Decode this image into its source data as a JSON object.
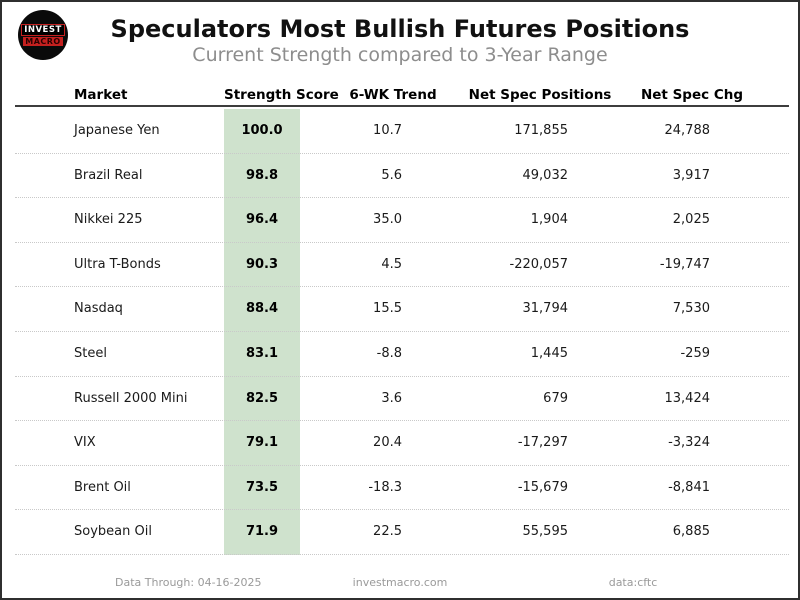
{
  "header": {
    "title": "Speculators Most Bullish Futures Positions",
    "subtitle": "Current Strength compared to 3-Year Range",
    "logo": {
      "line1": "INVEST",
      "line2": "MACRO"
    }
  },
  "table": {
    "columns": {
      "market": "Market",
      "score": "Strength Score",
      "trend": "6-WK Trend",
      "positions": "Net Spec Positions",
      "chg": "Net Spec Chg"
    },
    "rows": [
      {
        "market": "Japanese Yen",
        "score": "100.0",
        "trend": "10.7",
        "positions": "171,855",
        "chg": "24,788"
      },
      {
        "market": "Brazil Real",
        "score": "98.8",
        "trend": "5.6",
        "positions": "49,032",
        "chg": "3,917"
      },
      {
        "market": "Nikkei 225",
        "score": "96.4",
        "trend": "35.0",
        "positions": "1,904",
        "chg": "2,025"
      },
      {
        "market": "Ultra T-Bonds",
        "score": "90.3",
        "trend": "4.5",
        "positions": "-220,057",
        "chg": "-19,747"
      },
      {
        "market": "Nasdaq",
        "score": "88.4",
        "trend": "15.5",
        "positions": "31,794",
        "chg": "7,530"
      },
      {
        "market": "Steel",
        "score": "83.1",
        "trend": "-8.8",
        "positions": "1,445",
        "chg": "-259"
      },
      {
        "market": "Russell 2000 Mini",
        "score": "82.5",
        "trend": "3.6",
        "positions": "679",
        "chg": "13,424"
      },
      {
        "market": "VIX",
        "score": "79.1",
        "trend": "20.4",
        "positions": "-17,297",
        "chg": "-3,324"
      },
      {
        "market": "Brent Oil",
        "score": "73.5",
        "trend": "-18.3",
        "positions": "-15,679",
        "chg": "-8,841"
      },
      {
        "market": "Soybean Oil",
        "score": "71.9",
        "trend": "22.5",
        "positions": "55,595",
        "chg": "6,885"
      }
    ]
  },
  "footer": {
    "data_through": "Data Through: 04-16-2025",
    "site": "investmacro.com",
    "source": "data:cftc"
  },
  "colors": {
    "score_band_green": "#cfe2cd",
    "accent_red": "#c4201f",
    "subtitle_gray": "#8d8d8d",
    "frame_border": "#2f2f2f"
  },
  "chart_data": {
    "type": "table",
    "title": "Speculators Most Bullish Futures Positions",
    "subtitle": "Current Strength compared to 3-Year Range",
    "columns": [
      "Market",
      "Strength Score",
      "6-WK Trend",
      "Net Spec Positions",
      "Net Spec Chg"
    ],
    "rows": [
      [
        "Japanese Yen",
        100.0,
        10.7,
        171855,
        24788
      ],
      [
        "Brazil Real",
        98.8,
        5.6,
        49032,
        3917
      ],
      [
        "Nikkei 225",
        96.4,
        35.0,
        1904,
        2025
      ],
      [
        "Ultra T-Bonds",
        90.3,
        4.5,
        -220057,
        -19747
      ],
      [
        "Nasdaq",
        88.4,
        15.5,
        31794,
        7530
      ],
      [
        "Steel",
        83.1,
        -8.8,
        1445,
        -259
      ],
      [
        "Russell 2000 Mini",
        82.5,
        3.6,
        679,
        13424
      ],
      [
        "VIX",
        79.1,
        20.4,
        -17297,
        -3324
      ],
      [
        "Brent Oil",
        73.5,
        -18.3,
        -15679,
        -8841
      ],
      [
        "Soybean Oil",
        71.9,
        22.5,
        55595,
        6885
      ]
    ],
    "notes": [
      "Data Through: 04-16-2025",
      "investmacro.com",
      "data:cftc"
    ],
    "highlight_column": "Strength Score"
  }
}
